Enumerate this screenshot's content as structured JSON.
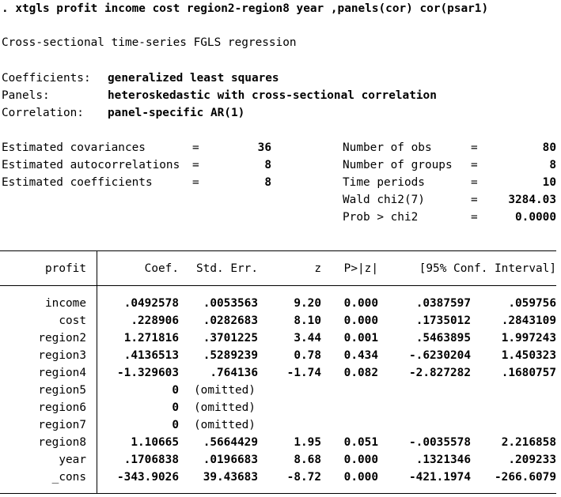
{
  "command": ". xtgls profit income cost region2-region8 year ,panels(cor) cor(psar1)",
  "title": "Cross-sectional time-series FGLS regression",
  "model_info": [
    {
      "label": "Coefficients:",
      "value": "generalized least squares"
    },
    {
      "label": "Panels:",
      "value": "heteroskedastic with cross-sectional correlation"
    },
    {
      "label": "Correlation:",
      "value": "panel-specific AR(1)"
    }
  ],
  "stats_left": [
    {
      "label": "Estimated covariances",
      "eq": "=",
      "value": "36"
    },
    {
      "label": "Estimated autocorrelations",
      "eq": "=",
      "value": "8"
    },
    {
      "label": "Estimated coefficients",
      "eq": "=",
      "value": "8"
    }
  ],
  "stats_right": [
    {
      "label": "Number of obs",
      "eq": "=",
      "value": "80"
    },
    {
      "label": "Number of groups",
      "eq": "=",
      "value": "8"
    },
    {
      "label": "Time periods",
      "eq": "=",
      "value": "10"
    },
    {
      "label": "Wald chi2(7)",
      "eq": "=",
      "value": "3284.03"
    },
    {
      "label": "Prob > chi2",
      "eq": "=",
      "value": "0.0000"
    }
  ],
  "table": {
    "headers": {
      "var": "profit",
      "coef": "Coef.",
      "se": "Std. Err.",
      "z": "z",
      "p": "P>|z|",
      "ci": "[95% Conf. Interval]"
    },
    "rows": [
      {
        "var": "income",
        "coef": ".0492578",
        "se": ".0053563",
        "z": "9.20",
        "p": "0.000",
        "lo": ".0387597",
        "hi": ".059756"
      },
      {
        "var": "cost",
        "coef": ".228906",
        "se": ".0282683",
        "z": "8.10",
        "p": "0.000",
        "lo": ".1735012",
        "hi": ".2843109"
      },
      {
        "var": "region2",
        "coef": "1.271816",
        "se": ".3701225",
        "z": "3.44",
        "p": "0.001",
        "lo": ".5463895",
        "hi": "1.997243"
      },
      {
        "var": "region3",
        "coef": ".4136513",
        "se": ".5289239",
        "z": "0.78",
        "p": "0.434",
        "lo": "-.6230204",
        "hi": "1.450323"
      },
      {
        "var": "region4",
        "coef": "-1.329603",
        "se": ".764136",
        "z": "-1.74",
        "p": "0.082",
        "lo": "-2.827282",
        "hi": ".1680757"
      },
      {
        "var": "region5",
        "coef": "0",
        "omitted": "(omitted)"
      },
      {
        "var": "region6",
        "coef": "0",
        "omitted": "(omitted)"
      },
      {
        "var": "region7",
        "coef": "0",
        "omitted": "(omitted)"
      },
      {
        "var": "region8",
        "coef": "1.10665",
        "se": ".5664429",
        "z": "1.95",
        "p": "0.051",
        "lo": "-.0035578",
        "hi": "2.216858"
      },
      {
        "var": "year",
        "coef": ".1706838",
        "se": ".0196683",
        "z": "8.68",
        "p": "0.000",
        "lo": ".1321346",
        "hi": ".209233"
      },
      {
        "var": "_cons",
        "coef": "-343.9026",
        "se": "39.43683",
        "z": "-8.72",
        "p": "0.000",
        "lo": "-421.1974",
        "hi": "-266.6079"
      }
    ]
  }
}
